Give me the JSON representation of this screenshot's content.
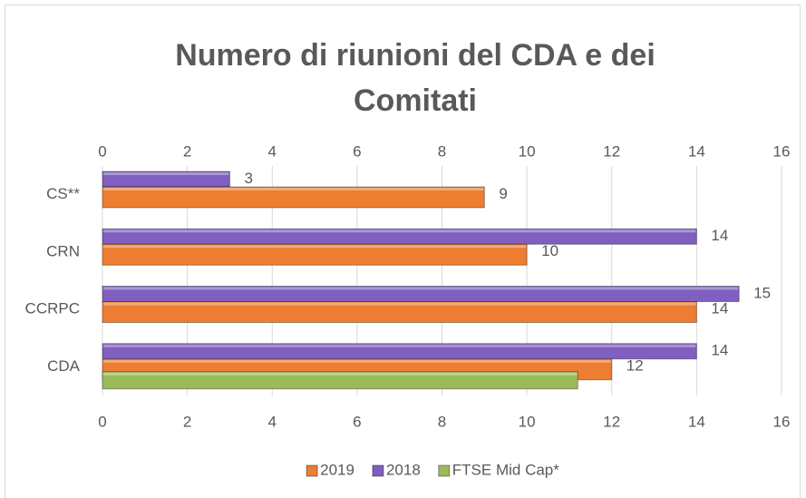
{
  "chart_data": {
    "type": "bar",
    "orientation": "horizontal",
    "title": "Numero di riunioni del CDA e dei Comitati",
    "categories": [
      "CS**",
      "CRN",
      "CCRPC",
      "CDA"
    ],
    "series": [
      {
        "name": "2019",
        "color": "#ed7d31",
        "values": [
          9,
          10,
          14,
          12
        ]
      },
      {
        "name": "2018",
        "color": "#7f5fbf",
        "values": [
          3,
          14,
          15,
          14
        ]
      },
      {
        "name": "FTSE Mid Cap*",
        "color": "#9bbb59",
        "values": [
          null,
          null,
          null,
          11.2
        ]
      }
    ],
    "data_labels": [
      true,
      true,
      false
    ],
    "xlim": [
      0,
      16
    ],
    "xticks": [
      0,
      2,
      4,
      6,
      8,
      10,
      12,
      14,
      16
    ],
    "grid": true,
    "legend": "bottom"
  }
}
